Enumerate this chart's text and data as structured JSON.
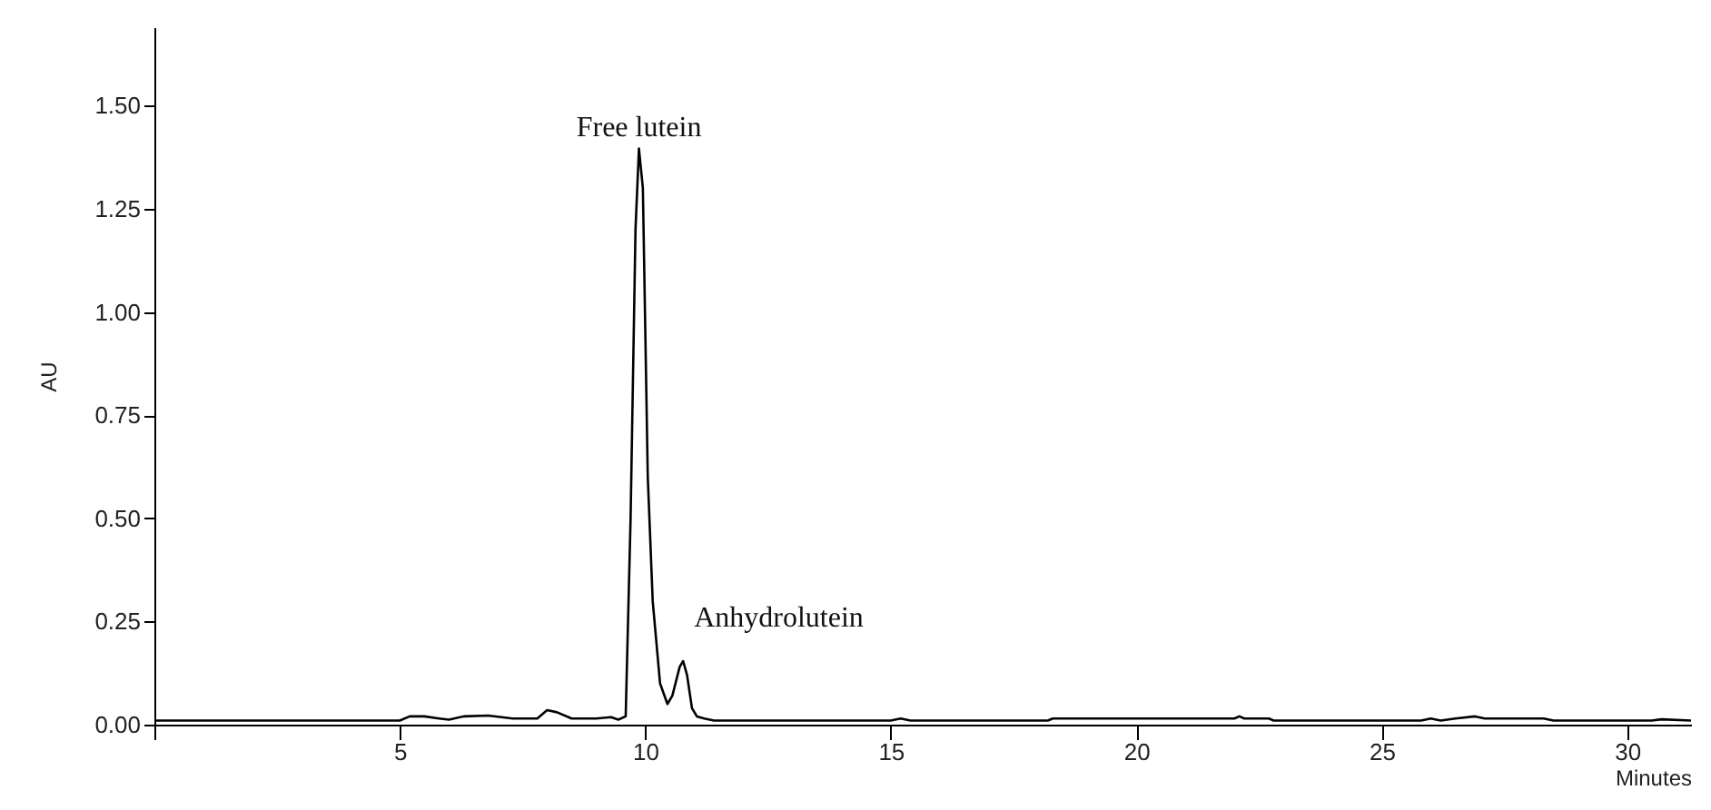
{
  "chart_data": {
    "type": "line",
    "xlabel": "Minutes",
    "ylabel": "AU",
    "x": [
      0,
      5.0,
      5.2,
      5.5,
      5.8,
      6.0,
      6.3,
      6.8,
      7.3,
      7.8,
      8.0,
      8.2,
      8.5,
      9.0,
      9.3,
      9.45,
      9.6,
      9.7,
      9.8,
      9.87,
      9.95,
      10.05,
      10.15,
      10.3,
      10.45,
      10.55,
      10.7,
      10.77,
      10.85,
      10.95,
      11.05,
      11.2,
      11.4,
      15.0,
      15.2,
      15.4,
      18.2,
      18.3,
      22.0,
      22.1,
      22.2,
      22.7,
      22.8,
      25.8,
      26.0,
      26.2,
      26.5,
      26.9,
      27.1,
      28.3,
      28.5,
      30.5,
      30.7,
      31.3
    ],
    "series": [
      {
        "color": "#000000",
        "values": [
          0.01,
          0.01,
          0.02,
          0.02,
          0.015,
          0.012,
          0.02,
          0.022,
          0.015,
          0.015,
          0.035,
          0.03,
          0.015,
          0.015,
          0.018,
          0.012,
          0.02,
          0.5,
          1.2,
          1.396,
          1.3,
          0.6,
          0.3,
          0.1,
          0.05,
          0.07,
          0.14,
          0.154,
          0.12,
          0.04,
          0.02,
          0.015,
          0.01,
          0.01,
          0.015,
          0.01,
          0.01,
          0.015,
          0.015,
          0.02,
          0.015,
          0.015,
          0.01,
          0.01,
          0.015,
          0.01,
          0.015,
          0.02,
          0.015,
          0.015,
          0.01,
          0.01,
          0.013,
          0.01
        ]
      }
    ],
    "xlim": [
      0,
      31.3
    ],
    "ylim": [
      0,
      1.69
    ],
    "xticks": [
      {
        "value": 0,
        "label": null
      },
      5,
      10,
      15,
      20,
      25,
      30
    ],
    "yticks": [
      {
        "value": 0,
        "label": "0.00"
      },
      {
        "value": 0.25,
        "label": "0.25"
      },
      {
        "value": 0.5,
        "label": "0.50"
      },
      {
        "value": 0.75,
        "label": "0.75"
      },
      {
        "value": 1,
        "label": "1.00"
      },
      {
        "value": 1.25,
        "label": "1.25"
      },
      {
        "value": 1.5,
        "label": "1.50"
      }
    ],
    "annotations": [
      {
        "text": "Free lutein",
        "x": 9.87,
        "y": 1.396
      },
      {
        "text": "Anhydrolutein",
        "x": 10.77,
        "y": 0.154
      }
    ],
    "grid": false,
    "marker": "none",
    "line_style": "solid"
  }
}
